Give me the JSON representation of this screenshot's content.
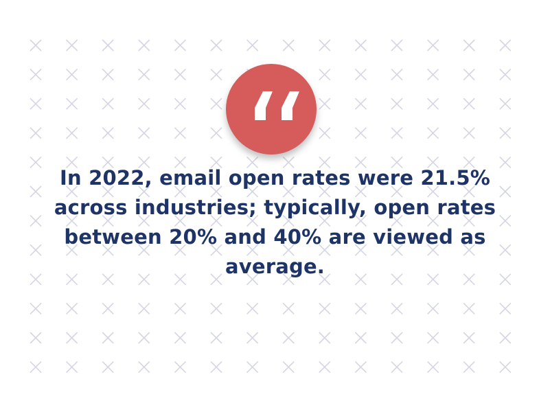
{
  "quote": {
    "icon": "quotation-mark-icon",
    "text": "In 2022, email open rates were 21.5% across industries; typically, open rates between 20% and 40% are viewed as average."
  },
  "colors": {
    "background": "#ffffff",
    "badge": "#d65b5b",
    "text": "#1f3466",
    "pattern": "#d4d7e3"
  },
  "pattern": {
    "icon": "x-mark-icon",
    "columns": 14,
    "rows": 12
  }
}
